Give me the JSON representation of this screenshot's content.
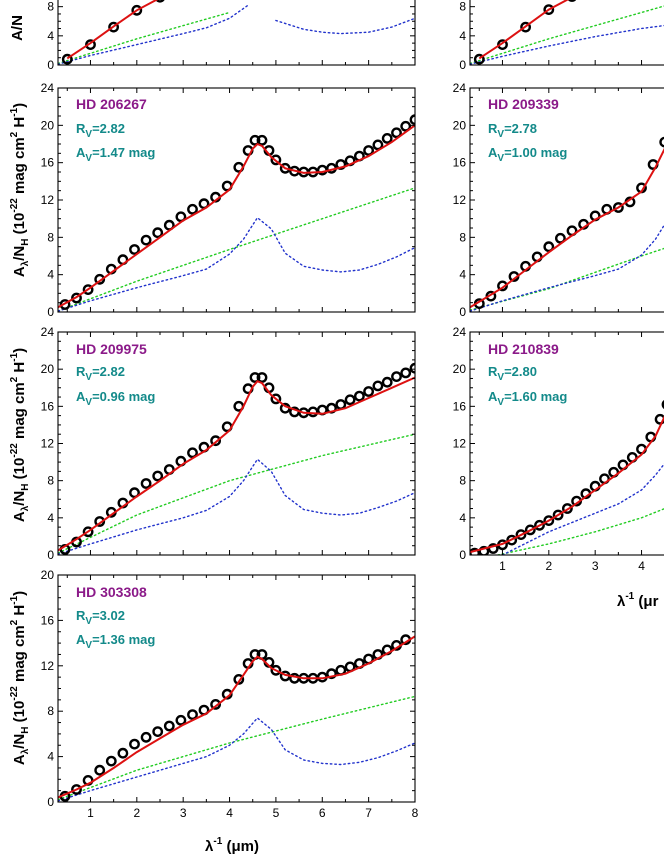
{
  "colors": {
    "name": "#8b1a89",
    "param": "#138a8a",
    "observed": "#000000",
    "model": "#dd1111",
    "green_component": "#22cc22",
    "blue_component": "#2233cc"
  },
  "figure": {
    "xlabel_main": "λ",
    "xlabel_sup": "-1",
    "xlabel_unit": " (μm)",
    "xlabel_right_clipped": "λ",
    "xlabel_right_clipped_sup": "-1",
    "xlabel_right_clipped_unit": " (μr",
    "ylabel_parts": {
      "a": "A",
      "a_sub": "λ",
      "slash": "/N",
      "n_sub": "H",
      "open": " (10",
      "exp": "-22",
      "mid": " mag cm",
      "sq": "2",
      "h": " H",
      "hexp": "-1",
      "close": ")"
    },
    "ylabel_top_clipped": "A/N"
  },
  "chart_data": [
    {
      "panel": "top-left (clipped)",
      "type": "line",
      "ylim": [
        0,
        24
      ],
      "xlim": [
        0.3,
        8
      ],
      "visible_yticks": [
        "0",
        "4",
        "8"
      ],
      "series": [
        {
          "name": "observed",
          "style": "open-circles",
          "x": [
            0.5,
            1.0,
            1.5,
            2.0,
            2.5
          ],
          "y": [
            0.8,
            2.8,
            5.2,
            7.5,
            9.3
          ]
        },
        {
          "name": "model",
          "style": "red-line",
          "x": [
            0.5,
            1.0,
            1.5,
            2.0,
            2.5
          ],
          "y": [
            0.9,
            3.0,
            5.3,
            7.5,
            9.2
          ]
        },
        {
          "name": "green",
          "style": "green-dotted",
          "x": [
            0.3,
            2.0,
            3.0,
            4.0
          ],
          "y": [
            0.2,
            3.6,
            5.4,
            7.2
          ]
        },
        {
          "name": "blue",
          "style": "blue-dotted",
          "x": [
            0.3,
            1.0,
            2.0,
            3.0,
            3.5,
            4.0,
            4.4
          ],
          "y": [
            0.1,
            1.3,
            2.8,
            4.3,
            5.1,
            6.4,
            8.2
          ]
        },
        {
          "name": "blue-right",
          "style": "blue-dotted",
          "x": [
            5.0,
            5.6,
            6.0,
            6.4,
            7.0,
            7.5,
            8.0
          ],
          "y": [
            6.1,
            4.9,
            4.5,
            4.3,
            4.5,
            5.2,
            6.4
          ]
        }
      ]
    },
    {
      "panel": "top-right (clipped)",
      "type": "line",
      "ylim": [
        0,
        24
      ],
      "xlim": [
        0.3,
        8
      ],
      "visible_yticks": [
        "0",
        "4",
        "8"
      ],
      "series": [
        {
          "name": "observed",
          "style": "open-circles",
          "x": [
            0.5,
            1.0,
            1.5,
            2.0,
            2.5
          ],
          "y": [
            0.8,
            2.8,
            5.2,
            7.6,
            9.4
          ]
        },
        {
          "name": "model",
          "style": "red-line",
          "x": [
            0.5,
            1.0,
            1.5,
            2.0,
            2.5
          ],
          "y": [
            0.9,
            3.0,
            5.3,
            7.6,
            9.3
          ]
        },
        {
          "name": "green",
          "style": "green-dotted",
          "x": [
            0.3,
            2.0,
            3.0,
            4.0,
            4.6
          ],
          "y": [
            0.2,
            3.6,
            5.4,
            7.2,
            8.3
          ]
        },
        {
          "name": "blue",
          "style": "blue-dotted",
          "x": [
            0.3,
            1.0,
            2.0,
            3.0,
            4.0,
            4.6
          ],
          "y": [
            0.1,
            1.2,
            2.6,
            3.9,
            5.0,
            5.5
          ]
        }
      ]
    },
    {
      "panel": "HD 206267",
      "type": "line",
      "labels": {
        "star": "HD 206267",
        "rv_prefix": "R",
        "rv_sub": "V",
        "rv_value": "=2.82",
        "av_prefix": "A",
        "av_sub": "V",
        "av_value": "=1.47 mag"
      },
      "ylim": [
        0,
        24
      ],
      "xlim": [
        0.3,
        8
      ],
      "yticks": [
        "0",
        "4",
        "8",
        "12",
        "16",
        "20",
        "24"
      ],
      "observed": {
        "x": [
          0.45,
          0.7,
          0.95,
          1.2,
          1.45,
          1.7,
          1.95,
          2.2,
          2.45,
          2.7,
          2.95,
          3.2,
          3.45,
          3.7,
          3.95,
          4.2,
          4.4,
          4.55,
          4.7,
          4.85,
          5.0,
          5.2,
          5.4,
          5.6,
          5.8,
          6.0,
          6.2,
          6.4,
          6.6,
          6.8,
          7.0,
          7.2,
          7.4,
          7.6,
          7.8,
          8.0
        ],
        "y": [
          0.8,
          1.5,
          2.4,
          3.5,
          4.6,
          5.6,
          6.7,
          7.7,
          8.5,
          9.3,
          10.2,
          11.0,
          11.6,
          12.3,
          13.5,
          15.5,
          17.3,
          18.4,
          18.4,
          17.3,
          16.3,
          15.4,
          15.1,
          15.0,
          15.0,
          15.2,
          15.4,
          15.8,
          16.2,
          16.7,
          17.3,
          17.9,
          18.6,
          19.2,
          19.9,
          20.6
        ]
      },
      "model": {
        "x": [
          0.3,
          0.7,
          1.0,
          1.5,
          2.0,
          2.5,
          3.0,
          3.5,
          4.0,
          4.3,
          4.5,
          4.6,
          4.7,
          4.9,
          5.2,
          5.6,
          6.0,
          6.5,
          7.0,
          7.5,
          8.0
        ],
        "y": [
          0.5,
          1.6,
          2.6,
          4.4,
          6.2,
          8.0,
          9.8,
          11.2,
          13.1,
          15.6,
          17.5,
          18.0,
          17.8,
          16.6,
          15.4,
          14.9,
          15.0,
          15.6,
          16.7,
          18.2,
          20.0
        ]
      },
      "green": {
        "x": [
          0.3,
          2.0,
          4.0,
          6.0,
          8.0
        ],
        "y": [
          0.1,
          3.3,
          6.7,
          10.0,
          13.3
        ]
      },
      "blue": {
        "x": [
          0.3,
          1.0,
          2.0,
          3.0,
          3.5,
          4.0,
          4.3,
          4.6,
          4.9,
          5.2,
          5.6,
          6.0,
          6.4,
          6.8,
          7.2,
          7.6,
          8.0
        ],
        "y": [
          0.1,
          1.2,
          2.6,
          3.9,
          4.6,
          6.2,
          7.8,
          10.1,
          8.9,
          6.3,
          4.9,
          4.5,
          4.3,
          4.5,
          5.1,
          5.9,
          6.9
        ]
      }
    },
    {
      "panel": "HD 209339 (clipped)",
      "type": "line",
      "labels": {
        "star": "HD 209339",
        "rv_prefix": "R",
        "rv_sub": "V",
        "rv_value": "=2.78",
        "av_prefix": "A",
        "av_sub": "V",
        "av_value": "=1.00 mag"
      },
      "ylim": [
        0,
        24
      ],
      "xlim": [
        0.3,
        8
      ],
      "yticks": [
        "0",
        "4",
        "8",
        "12",
        "16",
        "20",
        "24"
      ],
      "observed": {
        "x": [
          0.5,
          0.75,
          1.0,
          1.25,
          1.5,
          1.75,
          2.0,
          2.25,
          2.5,
          2.75,
          3.0,
          3.25,
          3.5,
          3.75,
          4.0,
          4.25,
          4.5
        ],
        "y": [
          0.9,
          1.7,
          2.8,
          3.8,
          4.9,
          5.9,
          7.0,
          7.9,
          8.7,
          9.4,
          10.3,
          11.0,
          11.2,
          11.8,
          13.3,
          15.8,
          18.2
        ]
      },
      "model": {
        "x": [
          0.3,
          1.0,
          1.5,
          2.0,
          2.5,
          3.0,
          3.5,
          4.0,
          4.3,
          4.6
        ],
        "y": [
          0.5,
          2.6,
          4.5,
          6.4,
          8.2,
          9.9,
          11.2,
          12.9,
          15.5,
          18.5
        ]
      },
      "green": {
        "x": [
          0.3,
          2.0,
          4.0,
          4.6
        ],
        "y": [
          0.2,
          2.5,
          6.0,
          7.0
        ]
      },
      "blue": {
        "x": [
          0.3,
          1.0,
          2.0,
          3.0,
          3.5,
          4.0,
          4.3,
          4.6
        ],
        "y": [
          0.1,
          1.2,
          2.6,
          3.9,
          4.6,
          6.1,
          7.8,
          10.2
        ]
      }
    },
    {
      "panel": "HD 209975",
      "type": "line",
      "labels": {
        "star": "HD 209975",
        "rv_prefix": "R",
        "rv_sub": "V",
        "rv_value": "=2.82",
        "av_prefix": "A",
        "av_sub": "V",
        "av_value": "=0.96 mag"
      },
      "ylim": [
        0,
        24
      ],
      "xlim": [
        0.3,
        8
      ],
      "yticks": [
        "0",
        "4",
        "8",
        "12",
        "16",
        "20",
        "24"
      ],
      "observed": {
        "x": [
          0.45,
          0.7,
          0.95,
          1.2,
          1.45,
          1.7,
          1.95,
          2.2,
          2.45,
          2.7,
          2.95,
          3.2,
          3.45,
          3.7,
          3.95,
          4.2,
          4.4,
          4.55,
          4.7,
          4.85,
          5.0,
          5.2,
          5.4,
          5.6,
          5.8,
          6.0,
          6.2,
          6.4,
          6.6,
          6.8,
          7.0,
          7.2,
          7.4,
          7.6,
          7.8,
          8.0
        ],
        "y": [
          0.6,
          1.4,
          2.5,
          3.6,
          4.6,
          5.6,
          6.7,
          7.7,
          8.5,
          9.2,
          10.1,
          11.0,
          11.6,
          12.3,
          13.8,
          16.0,
          17.9,
          19.1,
          19.1,
          18.0,
          16.8,
          15.8,
          15.4,
          15.3,
          15.4,
          15.6,
          15.8,
          16.2,
          16.7,
          17.1,
          17.6,
          18.2,
          18.6,
          19.2,
          19.6,
          20.1
        ]
      },
      "model": {
        "x": [
          0.3,
          0.7,
          1.0,
          1.5,
          2.0,
          2.5,
          3.0,
          3.5,
          4.0,
          4.3,
          4.5,
          4.6,
          4.7,
          4.9,
          5.2,
          5.6,
          6.0,
          6.5,
          7.0,
          7.5,
          8.0
        ],
        "y": [
          0.5,
          1.7,
          2.7,
          4.5,
          6.3,
          8.0,
          9.8,
          11.3,
          13.4,
          16.0,
          18.1,
          18.7,
          18.5,
          17.2,
          16.0,
          15.3,
          15.2,
          15.8,
          16.9,
          18.0,
          19.1
        ]
      },
      "green": {
        "x": [
          0.3,
          2.0,
          4.0,
          6.0,
          8.0
        ],
        "y": [
          0.2,
          4.3,
          8.0,
          10.7,
          13.0
        ]
      },
      "blue": {
        "x": [
          0.3,
          1.0,
          2.0,
          3.0,
          3.5,
          4.0,
          4.3,
          4.6,
          4.9,
          5.2,
          5.6,
          6.0,
          6.4,
          6.8,
          7.2,
          7.6,
          8.0
        ],
        "y": [
          0.1,
          1.2,
          2.7,
          4.0,
          4.8,
          6.3,
          8.0,
          10.3,
          9.0,
          6.4,
          4.9,
          4.5,
          4.3,
          4.5,
          5.1,
          5.8,
          6.7
        ]
      }
    },
    {
      "panel": "HD 210839 (clipped)",
      "type": "line",
      "labels": {
        "star": "HD 210839",
        "rv_prefix": "R",
        "rv_sub": "V",
        "rv_value": "=2.80",
        "av_prefix": "A",
        "av_sub": "V",
        "av_value": "=1.60 mag"
      },
      "ylim": [
        0,
        24
      ],
      "xlim": [
        0.3,
        8
      ],
      "yticks": [
        "0",
        "4",
        "8",
        "12",
        "16",
        "20",
        "24"
      ],
      "xticks": [
        "1",
        "2",
        "3",
        "4"
      ],
      "observed": {
        "x": [
          0.4,
          0.6,
          0.8,
          1.0,
          1.2,
          1.4,
          1.6,
          1.8,
          2.0,
          2.2,
          2.4,
          2.6,
          2.8,
          3.0,
          3.2,
          3.4,
          3.6,
          3.8,
          4.0,
          4.2,
          4.4,
          4.55
        ],
        "y": [
          0.2,
          0.4,
          0.7,
          1.1,
          1.6,
          2.2,
          2.7,
          3.2,
          3.7,
          4.3,
          5.0,
          5.8,
          6.6,
          7.4,
          8.2,
          8.9,
          9.7,
          10.5,
          11.4,
          12.7,
          14.6,
          16.2
        ]
      },
      "model": {
        "x": [
          0.3,
          1.0,
          1.5,
          2.0,
          2.5,
          3.0,
          3.5,
          4.0,
          4.3,
          4.6
        ],
        "y": [
          0.3,
          1.2,
          2.4,
          3.7,
          5.2,
          7.0,
          8.8,
          10.8,
          12.8,
          16.0
        ]
      },
      "green": {
        "x": [
          0.9,
          2.0,
          3.0,
          4.0,
          4.6
        ],
        "y": [
          0.0,
          1.2,
          2.5,
          4.0,
          5.2
        ]
      },
      "blue": {
        "x": [
          1.0,
          2.0,
          3.0,
          3.5,
          4.0,
          4.3,
          4.6
        ],
        "y": [
          0.0,
          2.5,
          4.5,
          5.5,
          7.0,
          8.6,
          10.5
        ]
      }
    },
    {
      "panel": "HD 303308",
      "type": "line",
      "labels": {
        "star": "HD 303308",
        "rv_prefix": "R",
        "rv_sub": "V",
        "rv_value": "=3.02",
        "av_prefix": "A",
        "av_sub": "V",
        "av_value": "=1.36 mag"
      },
      "ylim": [
        0,
        20
      ],
      "xlim": [
        0.3,
        8
      ],
      "yticks": [
        "0",
        "4",
        "8",
        "12",
        "16",
        "20"
      ],
      "xticks": [
        "1",
        "2",
        "3",
        "4",
        "5",
        "6",
        "7",
        "8"
      ],
      "observed": {
        "x": [
          0.45,
          0.7,
          0.95,
          1.2,
          1.45,
          1.7,
          1.95,
          2.2,
          2.45,
          2.7,
          2.95,
          3.2,
          3.45,
          3.7,
          3.95,
          4.2,
          4.4,
          4.55,
          4.7,
          4.85,
          5.0,
          5.2,
          5.4,
          5.6,
          5.8,
          6.0,
          6.2,
          6.4,
          6.6,
          6.8,
          7.0,
          7.2,
          7.4,
          7.6,
          7.8
        ],
        "y": [
          0.5,
          1.1,
          1.9,
          2.8,
          3.6,
          4.3,
          5.1,
          5.7,
          6.2,
          6.7,
          7.2,
          7.7,
          8.1,
          8.6,
          9.5,
          10.8,
          12.2,
          13.0,
          13.0,
          12.3,
          11.6,
          11.1,
          10.9,
          10.9,
          10.9,
          11.0,
          11.3,
          11.6,
          11.9,
          12.2,
          12.6,
          13.0,
          13.4,
          13.8,
          14.3
        ]
      },
      "model": {
        "x": [
          0.3,
          0.7,
          1.0,
          1.5,
          2.0,
          2.5,
          3.0,
          3.5,
          4.0,
          4.3,
          4.5,
          4.6,
          4.7,
          4.9,
          5.2,
          5.6,
          6.0,
          6.5,
          7.0,
          7.5,
          8.0
        ],
        "y": [
          0.4,
          1.1,
          1.7,
          3.0,
          4.4,
          5.6,
          6.8,
          7.8,
          9.4,
          11.2,
          12.4,
          12.8,
          12.6,
          11.8,
          11.2,
          10.9,
          10.9,
          11.3,
          12.2,
          13.3,
          14.6
        ]
      },
      "green": {
        "x": [
          0.3,
          2.0,
          4.0,
          6.0,
          8.0
        ],
        "y": [
          0.2,
          2.8,
          5.2,
          7.3,
          9.3
        ]
      },
      "blue": {
        "x": [
          0.3,
          1.0,
          2.0,
          3.0,
          3.5,
          4.0,
          4.3,
          4.6,
          4.9,
          5.2,
          5.6,
          6.0,
          6.4,
          6.8,
          7.2,
          7.6,
          8.0
        ],
        "y": [
          0.1,
          1.0,
          2.2,
          3.4,
          4.0,
          5.0,
          6.0,
          7.4,
          6.4,
          4.6,
          3.7,
          3.4,
          3.3,
          3.5,
          3.9,
          4.5,
          5.2
        ]
      }
    }
  ]
}
